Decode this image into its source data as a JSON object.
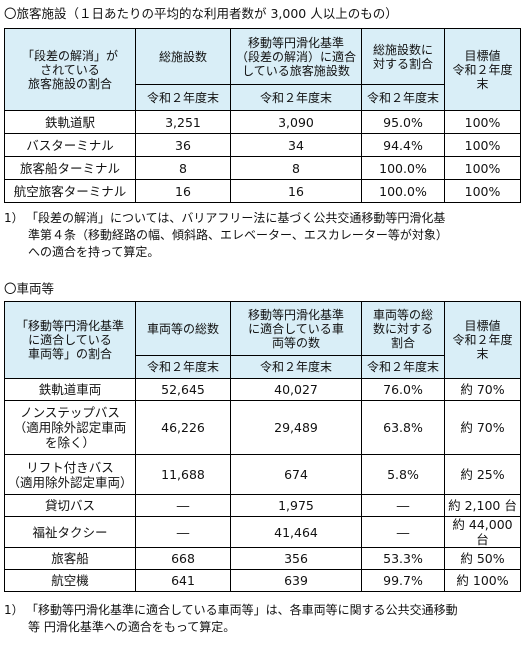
{
  "facilities": {
    "title": "〇旅客施設（１日あたりの平均的な利用者数が 3,000 人以上のもの）",
    "headers": [
      [
        "「段差の解消」が",
        "されている",
        "旅客施設の割合"
      ],
      [
        "総施設数"
      ],
      [
        "移動等円滑化基準",
        "（段差の解消）に適合",
        "している旅客施設数"
      ],
      [
        "総施設数に",
        "対する割合"
      ],
      [
        "目標値",
        "令和２年度末"
      ]
    ],
    "subheader": [
      "令和２年度末",
      "令和２年度末",
      "令和２年度末"
    ],
    "rows": [
      [
        "鉄軌道駅",
        "3,251",
        "3,090",
        "95.0%",
        "100%"
      ],
      [
        "バスターミナル",
        "36",
        "34",
        "94.4%",
        "100%"
      ],
      [
        "旅客船ターミナル",
        "8",
        "8",
        "100.0%",
        "100%"
      ],
      [
        "航空旅客ターミナル",
        "16",
        "16",
        "100.0%",
        "100%"
      ]
    ],
    "note": {
      "num": "1）",
      "lines": [
        "「段差の解消」については、バリアフリー法に基づく公共交通移動等円滑化基",
        "準第４条（移動経路の幅、傾斜路、エレベーター、エスカレーター等が対象）",
        "への適合を持って算定。"
      ]
    }
  },
  "vehicles": {
    "title": "〇車両等",
    "headers": [
      [
        "「移動等円滑化基準",
        "に適合している",
        "車両等」の割合"
      ],
      [
        "車両等の総数"
      ],
      [
        "移動等円滑化基準",
        "に適合している車",
        "両等の数"
      ],
      [
        "車両等の総",
        "数に対する",
        "割合"
      ],
      [
        "目標値",
        "令和２年度末"
      ]
    ],
    "subheader": [
      "令和２年度末",
      "令和２年度末",
      "令和２年度末"
    ],
    "rows": [
      [
        [
          "鉄軌道車両"
        ],
        "52,645",
        "40,027",
        "76.0%",
        "約 70%"
      ],
      [
        [
          "ノンステップバス",
          "（適用除外認定車両",
          "を除く）"
        ],
        "46,226",
        "29,489",
        "63.8%",
        "約 70%"
      ],
      [
        [
          "リフト付きバス",
          "（適用除外認定車両）"
        ],
        "11,688",
        "674",
        "5.8%",
        "約 25%"
      ],
      [
        [
          "貸切バス"
        ],
        "―",
        "1,975",
        "―",
        "約 2,100 台"
      ],
      [
        [
          "福祉タクシー"
        ],
        "―",
        "41,464",
        "―",
        "約 44,000 台"
      ],
      [
        [
          "旅客船"
        ],
        "668",
        "356",
        "53.3%",
        "約 50%"
      ],
      [
        [
          "航空機"
        ],
        "641",
        "639",
        "99.7%",
        "約 100%"
      ]
    ],
    "note": {
      "num": "1）",
      "lines": [
        "「移動等円滑化基準に適合している車両等」は、各車両等に関する公共交通移動",
        "等 円滑化基準への適合をもって算定。"
      ]
    }
  },
  "colors": {
    "header_bg": "#d9eef7",
    "border": "#000000"
  }
}
